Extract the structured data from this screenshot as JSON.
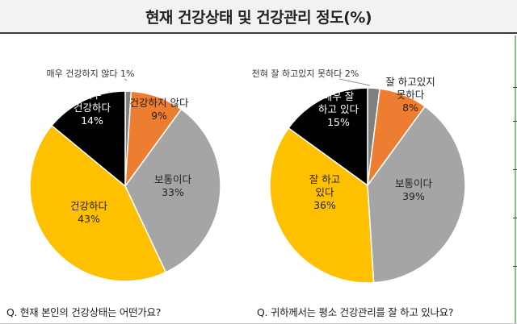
{
  "title": "현재 건강상태 및 건강관리 정도(%)",
  "chart_data": [
    {
      "type": "pie",
      "question": "Q. 현재 본인의 건강상태는 어떤가요?",
      "slices": [
        {
          "label": "매우 건강하지 않다",
          "value": 1,
          "color": "#7f7f7f"
        },
        {
          "label": "건강하지 않다",
          "value": 9,
          "color": "#ed7d31"
        },
        {
          "label": "보통이다",
          "value": 33,
          "color": "#a5a5a5"
        },
        {
          "label": "건강하다",
          "value": 43,
          "color": "#ffc000"
        },
        {
          "label": "매우 건강하다",
          "value": 14,
          "color": "#000000"
        }
      ]
    },
    {
      "type": "pie",
      "question": "Q. 귀하께서는 평소 건강관리를 잘 하고 있나요?",
      "slices": [
        {
          "label": "전혀 잘 하고있지 못하다",
          "value": 2,
          "color": "#7f7f7f"
        },
        {
          "label": "잘 하고있지 못하다",
          "value": 8,
          "color": "#ed7d31"
        },
        {
          "label": "보통이다",
          "value": 39,
          "color": "#a5a5a5"
        },
        {
          "label": "잘 하고 있다",
          "value": 36,
          "color": "#ffc000"
        },
        {
          "label": "매우 잘 하고 있다",
          "value": 15,
          "color": "#000000"
        }
      ]
    }
  ]
}
